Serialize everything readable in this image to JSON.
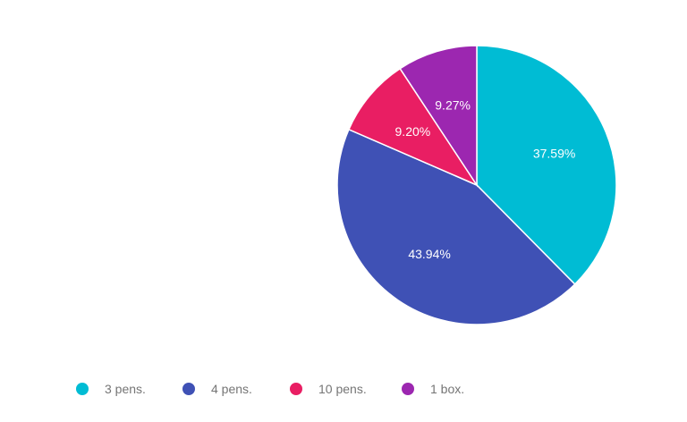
{
  "chart_data": {
    "type": "pie",
    "start_angle": "top, clockwise",
    "legend_position": "bottom",
    "slices": [
      {
        "label": "3 pens.",
        "value": 37.59,
        "display": "37.59%",
        "color": "#00bcd4"
      },
      {
        "label": "4 pens.",
        "value": 43.94,
        "display": "43.94%",
        "color": "#3f51b5"
      },
      {
        "label": "10 pens.",
        "value": 9.2,
        "display": "9.20%",
        "color": "#e91e63"
      },
      {
        "label": "1 box.",
        "value": 9.27,
        "display": "9.27%",
        "color": "#9c27b0"
      }
    ]
  }
}
